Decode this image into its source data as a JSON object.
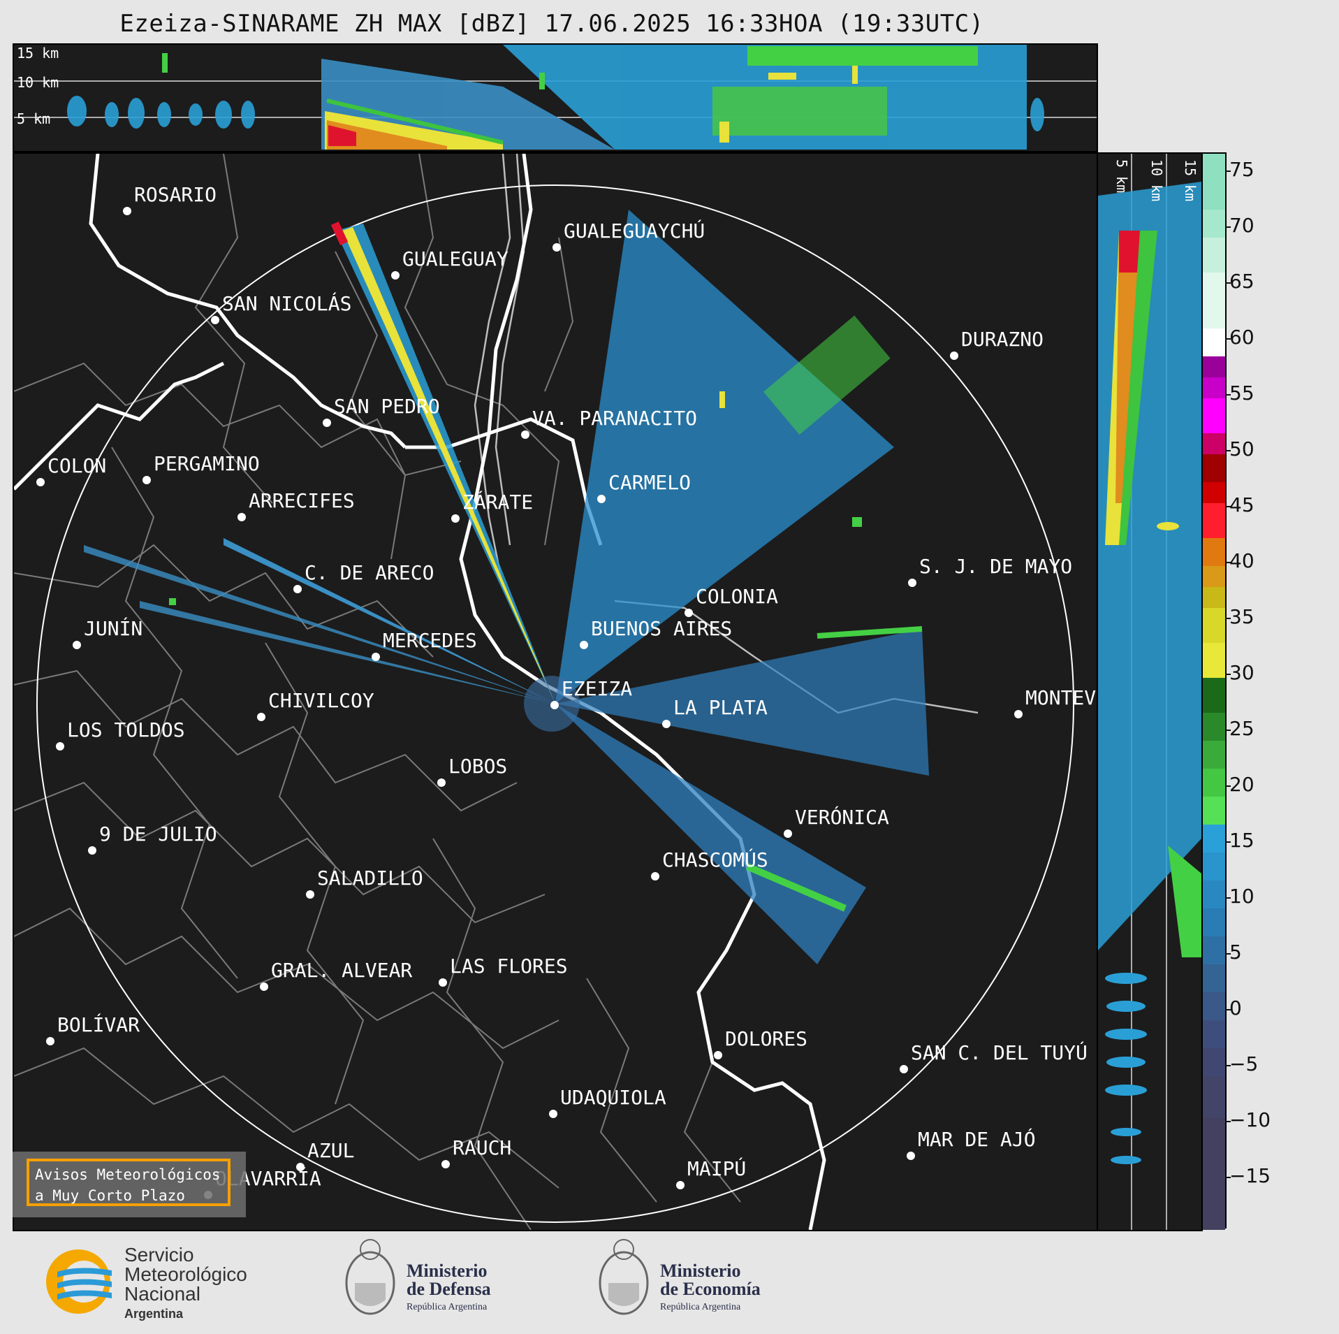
{
  "title": "Ezeiza-SINARAME ZH MAX [dBZ] 17.06.2025 16:33HOA (19:33UTC)",
  "top_panel": {
    "altitudes": [
      "15 km",
      "10 km",
      "5 km"
    ]
  },
  "side_panel": {
    "altitudes": [
      "5 km",
      "10 km",
      "15 km"
    ]
  },
  "cities": [
    {
      "name": "ROSARIO"
    },
    {
      "name": "GUALEGUAYCHÚ"
    },
    {
      "name": "GUALEGUAY"
    },
    {
      "name": "SAN NICOLÁS"
    },
    {
      "name": "DURAZNO"
    },
    {
      "name": "SAN PEDRO"
    },
    {
      "name": "VA. PARANACITO"
    },
    {
      "name": "COLON"
    },
    {
      "name": "PERGAMINO"
    },
    {
      "name": "CARMELO"
    },
    {
      "name": "ARRECIFES"
    },
    {
      "name": "ZÁRATE"
    },
    {
      "name": "C. DE ARECO"
    },
    {
      "name": "S. J. DE MAYO"
    },
    {
      "name": "COLONIA"
    },
    {
      "name": "BUENOS AIRES"
    },
    {
      "name": "JUNÍN"
    },
    {
      "name": "MERCEDES"
    },
    {
      "name": "EZEIZA"
    },
    {
      "name": "MONTEV"
    },
    {
      "name": "CHIVILCOY"
    },
    {
      "name": "LA PLATA"
    },
    {
      "name": "LOS TOLDOS"
    },
    {
      "name": "LOBOS"
    },
    {
      "name": "VERÓNICA"
    },
    {
      "name": "9 DE JULIO"
    },
    {
      "name": "CHASCOMÚS"
    },
    {
      "name": "SALADILLO"
    },
    {
      "name": "GRAL. ALVEAR"
    },
    {
      "name": "LAS FLORES"
    },
    {
      "name": "BOLÍVAR"
    },
    {
      "name": "DOLORES"
    },
    {
      "name": "SAN C. DEL TUYÚ"
    },
    {
      "name": "UDAQUIOLA"
    },
    {
      "name": "MAR DE AJÓ"
    },
    {
      "name": "AZUL"
    },
    {
      "name": "RAUCH"
    },
    {
      "name": "OLAVARRÍA"
    },
    {
      "name": "MAIPÚ"
    }
  ],
  "colorbar": {
    "unit": "dBZ",
    "ticks": [
      "75",
      "70",
      "65",
      "60",
      "55",
      "50",
      "45",
      "40",
      "35",
      "30",
      "25",
      "20",
      "15",
      "10",
      "5",
      "0",
      "−5",
      "−10",
      "−15"
    ],
    "range": [
      -20,
      77
    ]
  },
  "warning_box": {
    "line1": "Avisos Meteorológicos",
    "line2": "a Muy Corto Plazo"
  },
  "logos": {
    "smn": {
      "line1": "Servicio",
      "line2": "Meteorológico",
      "line3": "Nacional",
      "line4": "Argentina"
    },
    "defensa": {
      "line1": "Ministerio",
      "line2": "de Defensa",
      "line3": "República Argentina"
    },
    "economia": {
      "line1": "Ministerio",
      "line2": "de Economía",
      "line3": "República Argentina"
    }
  }
}
